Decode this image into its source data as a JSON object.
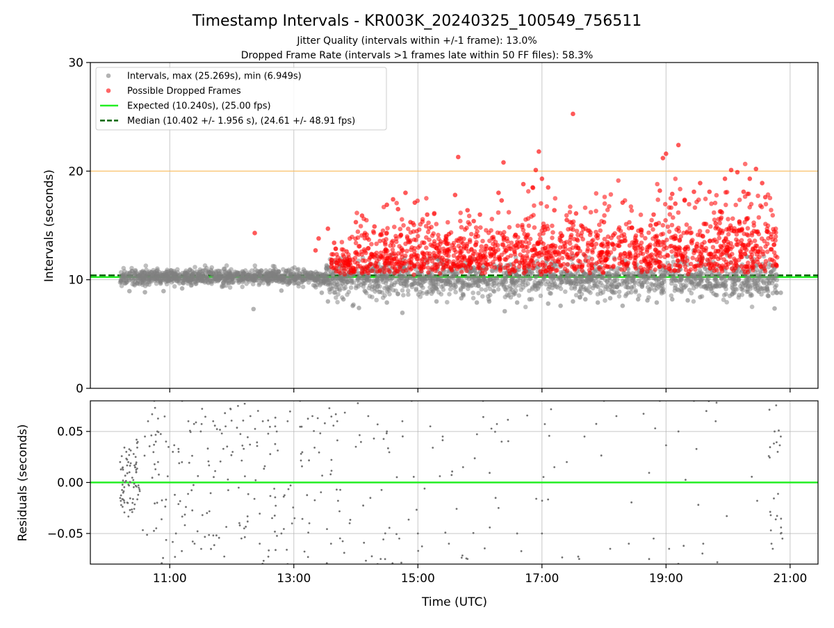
{
  "chart_data": [
    {
      "type": "scatter",
      "title": "Timestamp Intervals - KR003K_20240325_100549_756511",
      "subtitle_lines": [
        "Jitter Quality (intervals within +/-1 frame): 13.0%",
        "Dropped Frame Rate (intervals >1 frames late within 50 FF files): 58.3%"
      ],
      "xlabel": "",
      "ylabel": "Intervals (seconds)",
      "xlim_hours": [
        9.72,
        21.45
      ],
      "ylim": [
        0,
        30
      ],
      "yticks": [
        0,
        10,
        20,
        30
      ],
      "grid": true,
      "legend_position": "top-left",
      "legend": [
        {
          "label": "Intervals, max (25.269s), min (6.949s)",
          "kind": "marker",
          "color": "#808080"
        },
        {
          "label": "Possible Dropped Frames",
          "kind": "marker",
          "color": "#ff0000"
        },
        {
          "label": "Expected (10.240s), (25.00 fps)",
          "kind": "line",
          "color": "#22ee22"
        },
        {
          "label": "Median (10.402 +/- 1.956 s), (24.61 +/- 48.91 fps)",
          "kind": "dashed",
          "color": "#006400"
        }
      ],
      "reference_lines": [
        {
          "name": "expected",
          "y": 10.24,
          "color": "#22ee22",
          "style": "solid"
        },
        {
          "name": "median",
          "y": 10.402,
          "color": "#006400",
          "style": "dashed"
        },
        {
          "name": "threshold",
          "y": 20.0,
          "color": "#ffc060",
          "style": "solid"
        }
      ],
      "series": [
        {
          "name": "Intervals",
          "color": "#808080",
          "note": "dense cloud of roughly 2800 points; x in decimal hours UTC, y in seconds",
          "density_profile": [
            {
              "x_range": [
                10.2,
                13.5
              ],
              "y_center": 10.25,
              "y_spread": 0.45
            },
            {
              "x_range": [
                13.5,
                20.8
              ],
              "y_center": 10.1,
              "y_spread": 1.1
            }
          ],
          "points": [
            [
              10.35,
              8.95
            ],
            [
              10.6,
              8.85
            ],
            [
              10.9,
              8.95
            ],
            [
              11.2,
              9.2
            ],
            [
              12.35,
              7.3
            ],
            [
              12.8,
              9.0
            ],
            [
              13.45,
              8.8
            ],
            [
              13.55,
              8.0
            ],
            [
              13.8,
              8.2
            ],
            [
              13.95,
              7.6
            ],
            [
              14.05,
              7.4
            ],
            [
              14.5,
              7.9
            ],
            [
              14.75,
              6.95
            ],
            [
              15.3,
              8.0
            ],
            [
              15.7,
              8.3
            ],
            [
              15.95,
              7.9
            ],
            [
              16.15,
              8.0
            ],
            [
              16.4,
              7.1
            ],
            [
              16.6,
              7.9
            ],
            [
              16.8,
              8.2
            ],
            [
              17.1,
              7.8
            ],
            [
              17.3,
              7.6
            ],
            [
              17.5,
              8.0
            ],
            [
              17.7,
              8.2
            ],
            [
              17.9,
              7.9
            ],
            [
              18.1,
              8.3
            ],
            [
              18.3,
              7.6
            ],
            [
              18.55,
              8.2
            ],
            [
              18.7,
              8.1
            ],
            [
              18.85,
              7.9
            ],
            [
              19.1,
              8.2
            ],
            [
              19.35,
              8.1
            ],
            [
              19.55,
              8.4
            ],
            [
              19.8,
              8.6
            ],
            [
              20.1,
              8.8
            ],
            [
              20.5,
              8.9
            ],
            [
              20.65,
              8.5
            ],
            [
              20.75,
              7.35
            ],
            [
              20.85,
              8.8
            ]
          ]
        },
        {
          "name": "Possible Dropped Frames",
          "color": "#ff0000",
          "note": "roughly 1500 points, dense from 13.6h to 20.8h mostly between 10.5 and 15 s",
          "points": [
            [
              12.37,
              14.3
            ],
            [
              13.35,
              12.7
            ],
            [
              13.4,
              13.8
            ],
            [
              13.55,
              14.7
            ],
            [
              13.65,
              13.4
            ],
            [
              13.85,
              12.6
            ],
            [
              14.0,
              15.3
            ],
            [
              14.1,
              15.9
            ],
            [
              14.3,
              14.9
            ],
            [
              14.5,
              16.9
            ],
            [
              14.6,
              17.4
            ],
            [
              14.68,
              16.5
            ],
            [
              14.8,
              18.0
            ],
            [
              14.88,
              15.3
            ],
            [
              14.95,
              17.1
            ],
            [
              15.1,
              13.4
            ],
            [
              15.15,
              16.0
            ],
            [
              15.3,
              12.9
            ],
            [
              15.5,
              14.2
            ],
            [
              15.6,
              17.8
            ],
            [
              15.65,
              21.3
            ],
            [
              15.8,
              16.4
            ],
            [
              15.9,
              15.4
            ],
            [
              16.0,
              16.0
            ],
            [
              16.1,
              13.1
            ],
            [
              16.3,
              18.0
            ],
            [
              16.35,
              17.3
            ],
            [
              16.38,
              20.8
            ],
            [
              16.7,
              18.8
            ],
            [
              16.85,
              18.5
            ],
            [
              16.9,
              20.1
            ],
            [
              16.95,
              21.8
            ],
            [
              17.0,
              19.3
            ],
            [
              17.05,
              14.6
            ],
            [
              17.1,
              18.5
            ],
            [
              17.2,
              16.4
            ],
            [
              17.4,
              15.5
            ],
            [
              17.5,
              25.27
            ],
            [
              17.55,
              16.1
            ],
            [
              17.65,
              14.9
            ],
            [
              17.8,
              13.2
            ],
            [
              17.9,
              14.1
            ],
            [
              18.0,
              15.3
            ],
            [
              18.15,
              14.1
            ],
            [
              18.3,
              17.1
            ],
            [
              18.45,
              14.8
            ],
            [
              18.6,
              14.4
            ],
            [
              18.75,
              15.0
            ],
            [
              18.8,
              16.0
            ],
            [
              18.9,
              18.2
            ],
            [
              18.95,
              21.2
            ],
            [
              19.0,
              21.6
            ],
            [
              19.1,
              17.9
            ],
            [
              19.15,
              17.0
            ],
            [
              19.2,
              22.4
            ],
            [
              19.3,
              17.3
            ],
            [
              19.45,
              18.1
            ],
            [
              19.55,
              18.9
            ],
            [
              19.7,
              18.1
            ],
            [
              19.8,
              15.2
            ],
            [
              19.9,
              16.2
            ],
            [
              19.95,
              19.3
            ],
            [
              20.05,
              20.1
            ],
            [
              20.15,
              19.9
            ],
            [
              20.25,
              18.1
            ],
            [
              20.35,
              19.3
            ],
            [
              20.45,
              20.2
            ],
            [
              20.55,
              18.9
            ],
            [
              20.6,
              17.6
            ],
            [
              20.7,
              12.8
            ]
          ]
        }
      ]
    },
    {
      "type": "scatter",
      "xlabel": "Time (UTC)",
      "ylabel": "Residuals (seconds)",
      "xlim_hours": [
        9.72,
        21.45
      ],
      "ylim": [
        -0.08,
        0.08
      ],
      "yticks": [
        -0.05,
        0.0,
        0.05
      ],
      "ytick_labels": [
        "−0.05",
        "0.00",
        "0.05"
      ],
      "xticks_hours": [
        11,
        13,
        15,
        17,
        19,
        21
      ],
      "xtick_labels": [
        "11:00",
        "13:00",
        "15:00",
        "17:00",
        "19:00",
        "21:00"
      ],
      "grid": true,
      "reference_lines": [
        {
          "name": "zero",
          "y": 0.0,
          "color": "#22ee22",
          "style": "solid"
        }
      ],
      "series": [
        {
          "name": "Residuals",
          "color": "#707070",
          "note": "dense around x 10.2 to 10.5 and 20.7 to 20.9, scattered elsewhere",
          "points": [
            [
              10.2,
              0.02
            ],
            [
              10.25,
              -0.01
            ],
            [
              10.3,
              0.03
            ],
            [
              10.35,
              0.01
            ],
            [
              10.4,
              -0.02
            ],
            [
              10.45,
              0.025
            ],
            [
              10.5,
              -0.005
            ],
            [
              10.6,
              0.045
            ],
            [
              10.65,
              0.06
            ],
            [
              10.75,
              0.08
            ],
            [
              10.8,
              0.05
            ],
            [
              11.05,
              0.03
            ],
            [
              11.2,
              0.08
            ],
            [
              11.3,
              0.06
            ],
            [
              11.5,
              0.05
            ],
            [
              11.7,
              0.06
            ],
            [
              11.9,
              0.055
            ],
            [
              12.1,
              0.075
            ],
            [
              12.3,
              0.065
            ],
            [
              12.5,
              0.06
            ],
            [
              12.7,
              0.055
            ],
            [
              12.9,
              0.06
            ],
            [
              13.1,
              0.08
            ],
            [
              13.3,
              0.065
            ],
            [
              13.5,
              0.058
            ],
            [
              13.7,
              0.06
            ],
            [
              14.0,
              0.035
            ],
            [
              14.2,
              0.065
            ],
            [
              14.5,
              0.05
            ],
            [
              14.75,
              0.06
            ],
            [
              14.9,
              0.08
            ],
            [
              15.2,
              0.055
            ],
            [
              15.4,
              0.045
            ],
            [
              16.05,
              0.08
            ],
            [
              16.35,
              0.04
            ],
            [
              17.2,
              0.015
            ],
            [
              17.4,
              0.02
            ],
            [
              18.0,
              0.08
            ],
            [
              18.2,
              0.065
            ],
            [
              18.9,
              0.08
            ],
            [
              19.2,
              0.05
            ],
            [
              19.45,
              0.08
            ],
            [
              19.65,
              0.07
            ],
            [
              19.8,
              0.06
            ],
            [
              20.75,
              0.05
            ],
            [
              20.8,
              0.03
            ],
            [
              20.85,
              0.045
            ],
            [
              11.1,
              -0.05
            ],
            [
              11.4,
              -0.06
            ],
            [
              11.6,
              -0.03
            ],
            [
              12.2,
              -0.045
            ],
            [
              12.45,
              -0.06
            ],
            [
              12.65,
              -0.035
            ],
            [
              12.8,
              -0.05
            ],
            [
              13.25,
              -0.04
            ],
            [
              13.6,
              -0.06
            ],
            [
              13.9,
              -0.04
            ],
            [
              14.4,
              -0.075
            ],
            [
              14.7,
              -0.055
            ],
            [
              15.0,
              -0.05
            ],
            [
              15.5,
              -0.06
            ],
            [
              15.8,
              -0.075
            ],
            [
              16.3,
              -0.025
            ],
            [
              16.6,
              -0.05
            ],
            [
              17.0,
              -0.05
            ],
            [
              17.6,
              -0.075
            ],
            [
              18.1,
              -0.065
            ],
            [
              18.4,
              -0.06
            ],
            [
              18.8,
              -0.055
            ],
            [
              19.05,
              -0.065
            ],
            [
              19.6,
              -0.06
            ],
            [
              20.7,
              -0.06
            ],
            [
              20.85,
              -0.05
            ],
            [
              12.9,
              -0.08
            ],
            [
              14.35,
              -0.08
            ]
          ]
        }
      ]
    }
  ]
}
